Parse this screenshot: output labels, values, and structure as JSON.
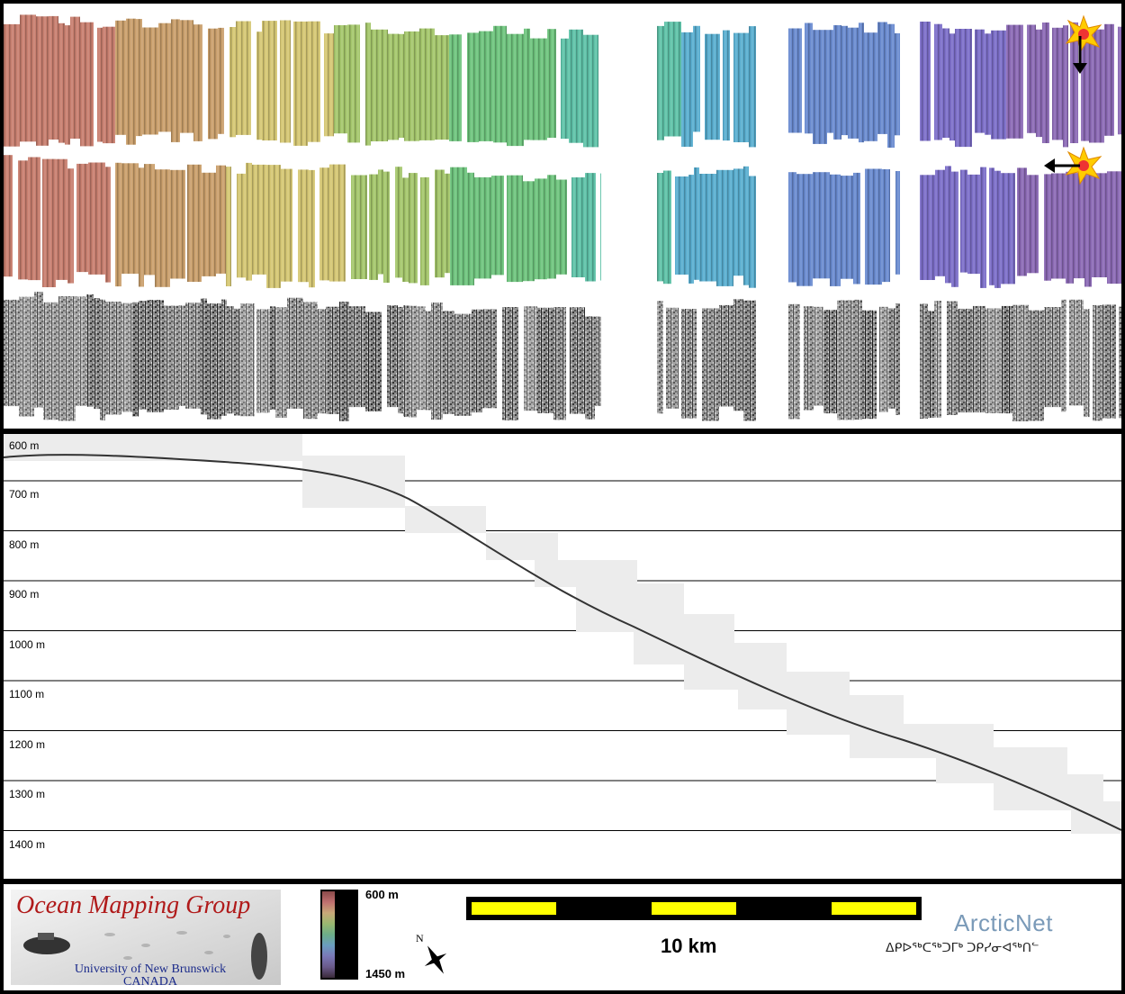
{
  "profile": {
    "depth_labels": [
      "600 m",
      "700 m",
      "800 m",
      "900 m",
      "1000 m",
      "1100 m",
      "1200 m",
      "1300 m",
      "1400 m"
    ]
  },
  "legend": {
    "logo": {
      "title": "Ocean Mapping Group",
      "university": "University of New Brunswick",
      "country": "CANADA"
    },
    "colorbar": {
      "top_label": "600 m",
      "bottom_label": "1450 m"
    },
    "north_arrow_label": "N",
    "scale_bar": {
      "label": "10 km"
    },
    "partner": {
      "name_en": "ArcticNet",
      "name_iu": "ᐃᑭᐅᖅᑕᖅᑐᒥᒃ ᑐᑭᓯᓂᐊᖅᑎᓪ"
    }
  },
  "colors": {
    "ramp": [
      "#c87f6f",
      "#caa06c",
      "#d5c774",
      "#a5c76c",
      "#6fc47e",
      "#5fc2a8",
      "#5aaed0",
      "#6a8bd0",
      "#7d6fc9",
      "#8c6ab5"
    ],
    "scale_yellow": "#ffff00",
    "ogm_red": "#b01a1a",
    "arctic_blue": "#7a9ab8"
  }
}
